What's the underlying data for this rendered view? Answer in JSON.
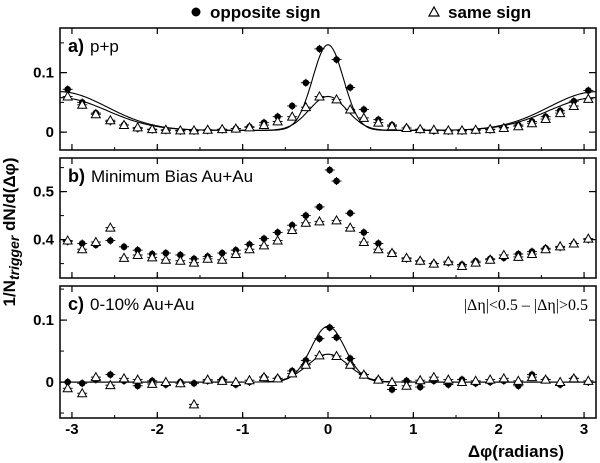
{
  "legend": {
    "opposite_label": "opposite sign",
    "same_label": "same sign",
    "placement": "top"
  },
  "axes": {
    "xlabel": "Δφ(radians)",
    "ylabel_prefix": "1/N",
    "ylabel_sub": "trigger",
    "ylabel_suffix": " dN/d(Δφ)",
    "xlim": [
      -3.14,
      3.14
    ],
    "xticks": [
      -3,
      -2,
      -1,
      0,
      1,
      2,
      3
    ]
  },
  "annotation": "|Δη|<0.5 – |Δη|>0.5",
  "colors": {
    "ink": "#000000",
    "background": "#ffffff"
  },
  "chart_data": [
    {
      "type": "scatter",
      "panel_letter": "a)",
      "panel_text": "p+p",
      "ylim": [
        -0.03,
        0.175
      ],
      "yticks": [
        0,
        0.1
      ],
      "ytick_labels": [
        "0",
        "0.1"
      ],
      "x": [
        -3.05,
        -2.88,
        -2.72,
        -2.55,
        -2.39,
        -2.23,
        -2.06,
        -1.9,
        -1.73,
        -1.57,
        -1.41,
        -1.24,
        -1.08,
        -0.92,
        -0.75,
        -0.59,
        -0.42,
        -0.26,
        -0.1,
        0.1,
        0.26,
        0.42,
        0.59,
        0.75,
        0.92,
        1.08,
        1.24,
        1.41,
        1.57,
        1.73,
        1.9,
        2.06,
        2.23,
        2.39,
        2.55,
        2.72,
        2.88,
        3.05
      ],
      "series": [
        {
          "name": "opposite sign",
          "values": [
            0.072,
            0.05,
            0.032,
            0.018,
            0.012,
            0.006,
            0.004,
            0.003,
            0.002,
            0.002,
            0.003,
            0.004,
            0.006,
            0.009,
            0.016,
            0.026,
            0.044,
            0.083,
            0.14,
            0.122,
            0.075,
            0.038,
            0.021,
            0.012,
            0.007,
            0.004,
            0.002,
            0.002,
            0.002,
            0.003,
            0.004,
            0.008,
            0.012,
            0.018,
            0.026,
            0.036,
            0.052,
            0.07
          ],
          "curve_peak": 0.147,
          "curve_width": 0.18,
          "curve_offset": 0.003,
          "curve_away_amp": 0.065,
          "curve_away_width": 0.55
        },
        {
          "name": "same sign",
          "values": [
            0.06,
            0.046,
            0.03,
            0.02,
            0.012,
            0.008,
            0.005,
            0.004,
            0.003,
            0.003,
            0.004,
            0.005,
            0.006,
            0.008,
            0.012,
            0.018,
            0.026,
            0.042,
            0.06,
            0.055,
            0.038,
            0.024,
            0.016,
            0.01,
            0.007,
            0.005,
            0.004,
            0.003,
            0.003,
            0.004,
            0.005,
            0.007,
            0.01,
            0.015,
            0.022,
            0.032,
            0.044,
            0.056
          ],
          "curve_peak": 0.06,
          "curve_width": 0.22,
          "curve_offset": 0.003,
          "curve_away_amp": 0.055,
          "curve_away_width": 0.55
        }
      ]
    },
    {
      "type": "scatter",
      "panel_letter": "b)",
      "panel_text": "Minimum Bias Au+Au",
      "ylim": [
        0.32,
        0.57
      ],
      "yticks": [
        0.4,
        0.5
      ],
      "ytick_labels": [
        "0.4",
        "0.5"
      ],
      "x": [
        -3.05,
        -2.88,
        -2.72,
        -2.55,
        -2.39,
        -2.23,
        -2.06,
        -1.9,
        -1.73,
        -1.57,
        -1.41,
        -1.24,
        -1.08,
        -0.92,
        -0.75,
        -0.59,
        -0.42,
        -0.26,
        -0.1,
        0.1,
        0.26,
        0.42,
        0.59,
        0.75,
        0.92,
        1.08,
        1.24,
        1.41,
        1.57,
        1.73,
        1.9,
        2.06,
        2.23,
        2.39,
        2.55,
        2.72,
        2.88,
        3.05
      ],
      "series": [
        {
          "name": "opposite sign",
          "values": [
            0.396,
            0.392,
            0.389,
            0.398,
            0.385,
            0.378,
            0.37,
            0.372,
            0.368,
            0.36,
            0.365,
            0.372,
            0.378,
            0.39,
            0.402,
            0.415,
            0.43,
            0.45,
            0.468,
            0.522,
            0.455,
            0.415,
            0.392,
            0.372,
            0.36,
            0.355,
            0.35,
            0.352,
            0.348,
            0.355,
            0.36,
            0.362,
            0.37,
            0.375,
            0.382,
            0.384,
            0.392,
            0.4
          ],
          "peak_point": {
            "x": 0.02,
            "y": 0.545
          }
        },
        {
          "name": "same sign",
          "values": [
            0.398,
            0.38,
            0.395,
            0.425,
            0.362,
            0.368,
            0.363,
            0.358,
            0.356,
            0.352,
            0.36,
            0.358,
            0.37,
            0.38,
            0.388,
            0.398,
            0.42,
            0.435,
            0.438,
            0.44,
            0.425,
            0.395,
            0.38,
            0.372,
            0.362,
            0.356,
            0.35,
            0.355,
            0.345,
            0.352,
            0.358,
            0.368,
            0.364,
            0.37,
            0.38,
            0.386,
            0.392,
            0.402
          ]
        }
      ]
    },
    {
      "type": "scatter",
      "panel_letter": "c)",
      "panel_text": "0-10% Au+Au",
      "ylim": [
        -0.058,
        0.155
      ],
      "yticks": [
        0,
        0.1
      ],
      "ytick_labels": [
        "0",
        "0.1"
      ],
      "x": [
        -3.05,
        -2.88,
        -2.72,
        -2.55,
        -2.39,
        -2.23,
        -2.06,
        -1.9,
        -1.73,
        -1.57,
        -1.41,
        -1.24,
        -1.08,
        -0.92,
        -0.75,
        -0.59,
        -0.42,
        -0.26,
        -0.1,
        0.1,
        0.26,
        0.42,
        0.59,
        0.75,
        0.92,
        1.08,
        1.24,
        1.41,
        1.57,
        1.73,
        1.9,
        2.06,
        2.23,
        2.39,
        2.55,
        2.72,
        2.88,
        3.05
      ],
      "series": [
        {
          "name": "opposite sign",
          "values": [
            0.0,
            -0.002,
            0.004,
            0.012,
            0.002,
            -0.006,
            0.002,
            -0.004,
            0.0,
            -0.002,
            0.002,
            0.004,
            -0.004,
            0.0,
            0.008,
            0.006,
            0.018,
            0.035,
            0.07,
            0.072,
            0.038,
            0.012,
            0.004,
            -0.012,
            0.002,
            -0.008,
            0.002,
            -0.004,
            0.004,
            -0.002,
            0.0,
            0.002,
            -0.006,
            0.012,
            0.004,
            -0.004,
            0.006,
            0.0
          ],
          "peak_point": {
            "x": 0.02,
            "y": 0.088
          },
          "curve_peak": 0.09,
          "curve_width": 0.2,
          "curve_offset": 0.0
        },
        {
          "name": "same sign",
          "values": [
            -0.01,
            -0.018,
            0.008,
            -0.005,
            0.006,
            0.004,
            -0.003,
            0.0,
            -0.002,
            -0.036,
            0.004,
            0.002,
            0.0,
            0.003,
            0.008,
            0.006,
            0.014,
            0.028,
            0.043,
            0.042,
            0.028,
            0.012,
            0.004,
            0.0,
            -0.006,
            0.003,
            0.008,
            0.004,
            0.0,
            0.002,
            0.004,
            0.006,
            0.002,
            0.008,
            0.004,
            0.0,
            0.006,
            0.002
          ],
          "curve_peak": 0.045,
          "curve_width": 0.24,
          "curve_offset": 0.0
        }
      ]
    }
  ]
}
